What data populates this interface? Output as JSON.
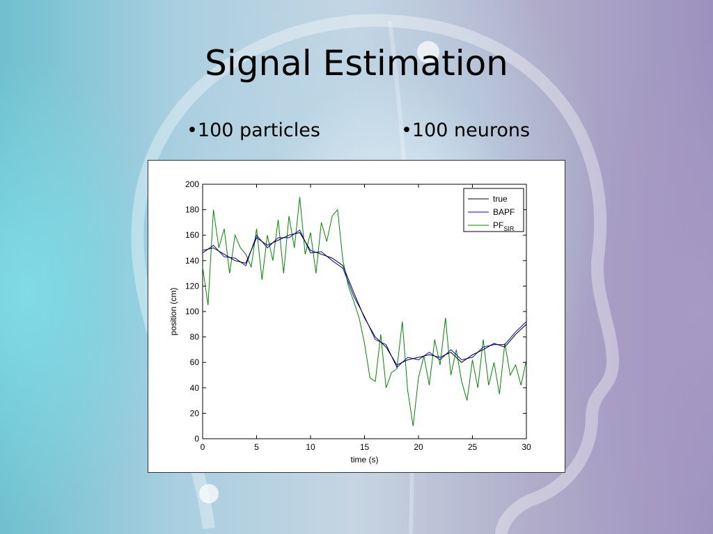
{
  "slide": {
    "title": "Signal Estimation",
    "bullets": [
      "•100 particles",
      "•100 neurons"
    ]
  },
  "chart_data": {
    "type": "line",
    "title": "",
    "xlabel": "time (s)",
    "ylabel": "position (cm)",
    "xlim": [
      0,
      30
    ],
    "ylim": [
      0,
      200
    ],
    "xticks": [
      0,
      5,
      10,
      15,
      20,
      25,
      30
    ],
    "yticks": [
      0,
      20,
      40,
      60,
      80,
      100,
      120,
      140,
      160,
      180,
      200
    ],
    "grid": false,
    "legend_position": "top-right",
    "series": [
      {
        "name": "true",
        "label_main": "true",
        "label_sub": "",
        "color": "#000000",
        "x": [
          0,
          1,
          2,
          3,
          4,
          5,
          6,
          7,
          8,
          9,
          10,
          11,
          12,
          13,
          14,
          15,
          16,
          17,
          18,
          19,
          20,
          21,
          22,
          23,
          24,
          25,
          26,
          27,
          28,
          29,
          30
        ],
        "values": [
          148,
          150,
          145,
          140,
          138,
          158,
          152,
          156,
          160,
          162,
          148,
          145,
          142,
          136,
          115,
          95,
          80,
          72,
          58,
          62,
          64,
          66,
          64,
          68,
          60,
          66,
          70,
          75,
          72,
          82,
          90
        ]
      },
      {
        "name": "BAPF",
        "label_main": "BAPF",
        "label_sub": "",
        "color": "#0000cc",
        "x": [
          0,
          1,
          2,
          3,
          4,
          5,
          6,
          7,
          8,
          9,
          10,
          11,
          12,
          13,
          14,
          15,
          16,
          17,
          18,
          19,
          20,
          21,
          22,
          23,
          24,
          25,
          26,
          27,
          28,
          29,
          30
        ],
        "values": [
          146,
          152,
          143,
          142,
          136,
          160,
          150,
          158,
          158,
          164,
          146,
          147,
          140,
          134,
          112,
          96,
          78,
          74,
          56,
          64,
          62,
          68,
          62,
          70,
          62,
          64,
          72,
          74,
          74,
          84,
          92
        ]
      },
      {
        "name": "PF SIR",
        "label_main": "PF",
        "label_sub": "SIR",
        "color": "#008800",
        "x": [
          0,
          0.5,
          1,
          1.5,
          2,
          2.5,
          3,
          3.5,
          4,
          4.5,
          5,
          5.5,
          6,
          6.5,
          7,
          7.5,
          8,
          8.5,
          9,
          9.5,
          10,
          10.5,
          11,
          11.5,
          12,
          12.5,
          13,
          13.5,
          14,
          14.5,
          15,
          15.5,
          16,
          16.5,
          17,
          17.5,
          18,
          18.5,
          19,
          19.5,
          20,
          20.5,
          21,
          21.5,
          22,
          22.5,
          23,
          23.5,
          24,
          24.5,
          25,
          25.5,
          26,
          26.5,
          27,
          27.5,
          28,
          28.5,
          29,
          29.5,
          30
        ],
        "values": [
          135,
          105,
          180,
          150,
          165,
          130,
          160,
          150,
          145,
          135,
          165,
          125,
          160,
          140,
          172,
          130,
          175,
          150,
          190,
          145,
          162,
          130,
          170,
          155,
          175,
          180,
          140,
          120,
          108,
          95,
          75,
          48,
          45,
          82,
          40,
          52,
          55,
          92,
          38,
          10,
          48,
          65,
          42,
          78,
          58,
          95,
          50,
          70,
          45,
          30,
          62,
          40,
          78,
          42,
          60,
          35,
          75,
          50,
          58,
          42,
          62
        ]
      }
    ]
  }
}
